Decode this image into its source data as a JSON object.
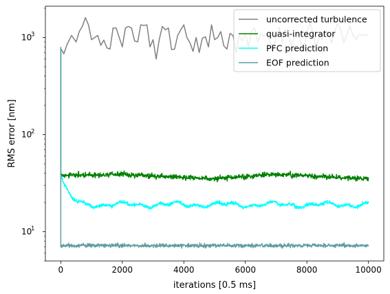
{
  "chart_data": {
    "type": "line",
    "title": "",
    "xlabel": "iterations [0.5 ms]",
    "ylabel": "RMS error [nm]",
    "xlim": [
      -500,
      10500
    ],
    "ylim": [
      5,
      2100
    ],
    "yscale": "log",
    "grid": false,
    "legend_position": "top-right",
    "x_ticks": [
      {
        "value": 0,
        "label": "0"
      },
      {
        "value": 2000,
        "label": "2000"
      },
      {
        "value": 4000,
        "label": "4000"
      },
      {
        "value": 6000,
        "label": "6000"
      },
      {
        "value": 8000,
        "label": "8000"
      },
      {
        "value": 10000,
        "label": "10000"
      }
    ],
    "y_ticks": [
      {
        "value": 10,
        "base": "10",
        "exp": "1"
      },
      {
        "value": 100,
        "base": "10",
        "exp": "2"
      },
      {
        "value": 1000,
        "base": "10",
        "exp": "3"
      }
    ],
    "series": [
      {
        "name": "uncorrected turbulence",
        "color": "#808080",
        "x": [
          0,
          30,
          100,
          200,
          350,
          500,
          600,
          700,
          800,
          900,
          1000,
          1100,
          1200,
          1300,
          1400,
          1500,
          1600,
          1700,
          1800,
          1900,
          2000,
          2100,
          2200,
          2300,
          2400,
          2500,
          2600,
          2700,
          2800,
          2900,
          3000,
          3100,
          3200,
          3300,
          3400,
          3500,
          3600,
          3700,
          3800,
          3900,
          4000,
          4100,
          4200,
          4300,
          4400,
          4500,
          4600,
          4700,
          4800,
          4900,
          5000,
          5100,
          5200,
          5300,
          5400,
          5500,
          5600,
          5700,
          5800,
          5900,
          6000,
          6100,
          6200,
          6300,
          6400,
          6500,
          6600,
          6700,
          6800,
          6900,
          7000,
          7100,
          7200,
          7300,
          7400,
          7500,
          7600,
          7700,
          7800,
          7900,
          8000,
          8100,
          8200,
          8300,
          8400,
          8500,
          8600,
          8700,
          8800,
          8900,
          9000,
          9100,
          9200,
          9300,
          9400,
          9500,
          9600,
          9700,
          9800,
          9900,
          10000
        ],
        "values": [
          760,
          740,
          680,
          840,
          1050,
          900,
          1150,
          1300,
          1600,
          1350,
          950,
          1000,
          1050,
          830,
          940,
          780,
          760,
          1250,
          1250,
          1000,
          800,
          1250,
          1300,
          1250,
          920,
          900,
          1350,
          1330,
          1350,
          800,
          950,
          600,
          950,
          1300,
          1200,
          1250,
          750,
          760,
          1050,
          1200,
          1350,
          1000,
          880,
          720,
          1000,
          700,
          980,
          1020,
          800,
          1350,
          950,
          1000,
          1150,
          820,
          760,
          1100,
          1050,
          700,
          1050,
          920,
          1100,
          800,
          1180,
          1250,
          900,
          1100,
          1020,
          1100,
          900,
          720,
          1000,
          1280,
          900,
          1200,
          1100,
          800,
          1050,
          1100,
          900,
          750,
          1150,
          1400,
          1120,
          760,
          1050,
          950,
          1200,
          1100,
          880,
          1150,
          1400,
          1200,
          880,
          1080,
          1320,
          1050,
          950,
          1080,
          1050,
          1080,
          1030
        ]
      },
      {
        "name": "quasi-integrator",
        "color": "#008000",
        "start": [
          780,
          38
        ],
        "level": 37,
        "drift": [
          0,
          38,
          2000,
          39,
          5000,
          35,
          7000,
          39,
          10000,
          35
        ]
      },
      {
        "name": "PFC prediction",
        "color": "#00ffff",
        "start": [
          780,
          38
        ],
        "level": 19,
        "decay_from": 38,
        "decay_iterations": 200
      },
      {
        "name": "EOF prediction",
        "color": "#5f9ea0",
        "start": [
          800,
          7
        ],
        "level": 7.2
      }
    ]
  }
}
